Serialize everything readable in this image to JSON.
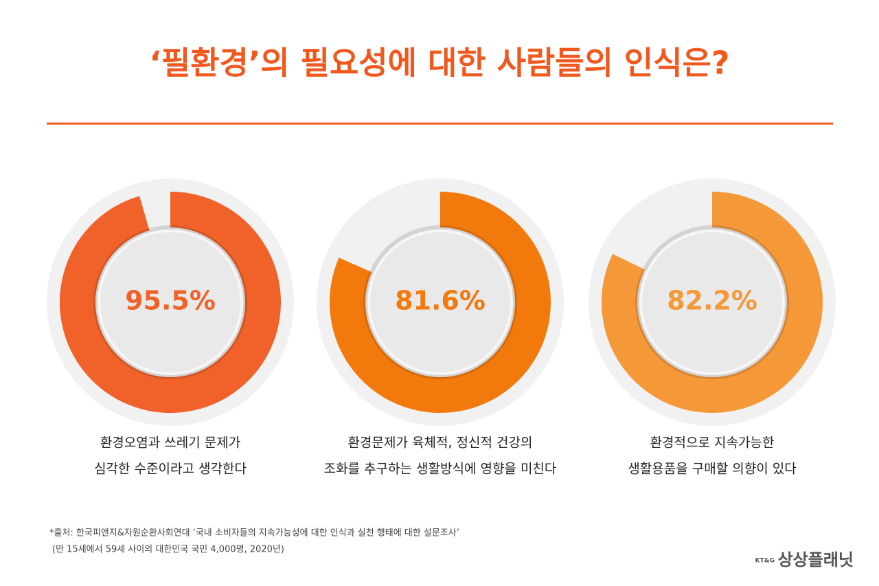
{
  "title": "‘필환경’의 필요성에 대한 사람들의 인식은?",
  "chart_data": [
    {
      "type": "donut",
      "values": [
        95.5
      ],
      "value_labels": [
        "95.5%"
      ],
      "color": "#f0622a",
      "caption": [
        "환경오염과 쓰레기 문제가",
        "심각한 수준이라고 생각한다"
      ]
    },
    {
      "type": "donut",
      "values": [
        81.6
      ],
      "value_labels": [
        "81.6%"
      ],
      "color": "#f27a0c",
      "caption": [
        "환경문제가 육체적, 정신적 건강의",
        "조화를 추구하는 생활방식에 영향을 미친다"
      ]
    },
    {
      "type": "donut",
      "values": [
        82.2
      ],
      "value_labels": [
        "82.2%"
      ],
      "color": "#f59838",
      "caption": [
        "환경적으로 지속가능한",
        "생활용품을 구매할 의향이 있다"
      ]
    }
  ],
  "source": [
    "*출처: 한국피앤지&자원순환사회연대 ‘국내 소비자들의 지속가능성에 대한 인식과 실천 행태에 대한 설문조사’",
    "(만 15세에서 59세 사이의 대한민국 국민 4,000명, 2020년)"
  ],
  "logo": {
    "prefix": "KT&G",
    "name": "상상플래닛"
  }
}
